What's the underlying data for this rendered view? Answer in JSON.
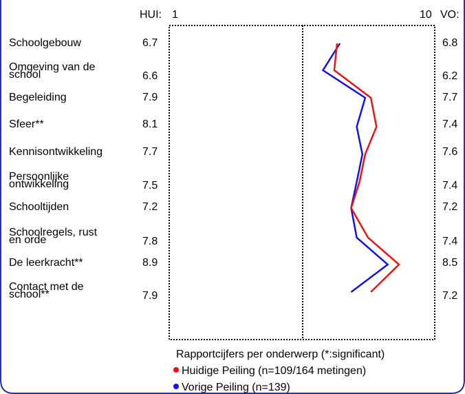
{
  "colors": {
    "huidige": "#ee1111",
    "vorige": "#1111ee",
    "border": "#2233aa"
  },
  "chart_data": {
    "type": "line",
    "orientation": "horizontal-profile",
    "xlim": [
      1,
      10
    ],
    "tick_labels": [
      "1",
      "10"
    ],
    "left_header": "HUI:",
    "right_header": "VO:",
    "title": "Rapportcijfers per onderwerp (*:significant)",
    "categories": [
      {
        "line1": "Schoolgebouw",
        "line2": ""
      },
      {
        "line1": "Omgeving van de",
        "line2": "school"
      },
      {
        "line1": "Begeleiding",
        "line2": ""
      },
      {
        "line1": "Sfeer**",
        "line2": ""
      },
      {
        "line1": "Kennisontwikkeling",
        "line2": ""
      },
      {
        "line1": "Persoonlijke",
        "line2": "ontwikkeling"
      },
      {
        "line1": "Schooltijden",
        "line2": ""
      },
      {
        "line1": "Schoolregels, rust",
        "line2": "en orde"
      },
      {
        "line1": "De leerkracht**",
        "line2": ""
      },
      {
        "line1": "Contact met de",
        "line2": "school**"
      }
    ],
    "series": [
      {
        "name": "Huidige Peiling (n=109/164 metingen)",
        "color": "#ee1111",
        "values": [
          6.7,
          6.6,
          7.9,
          8.1,
          7.7,
          7.5,
          7.2,
          7.8,
          8.9,
          7.9
        ]
      },
      {
        "name": "Vorige Peiling (n=139)",
        "color": "#1111ee",
        "values": [
          6.8,
          6.2,
          7.7,
          7.4,
          7.6,
          7.4,
          7.2,
          7.4,
          8.5,
          7.2
        ]
      }
    ]
  }
}
